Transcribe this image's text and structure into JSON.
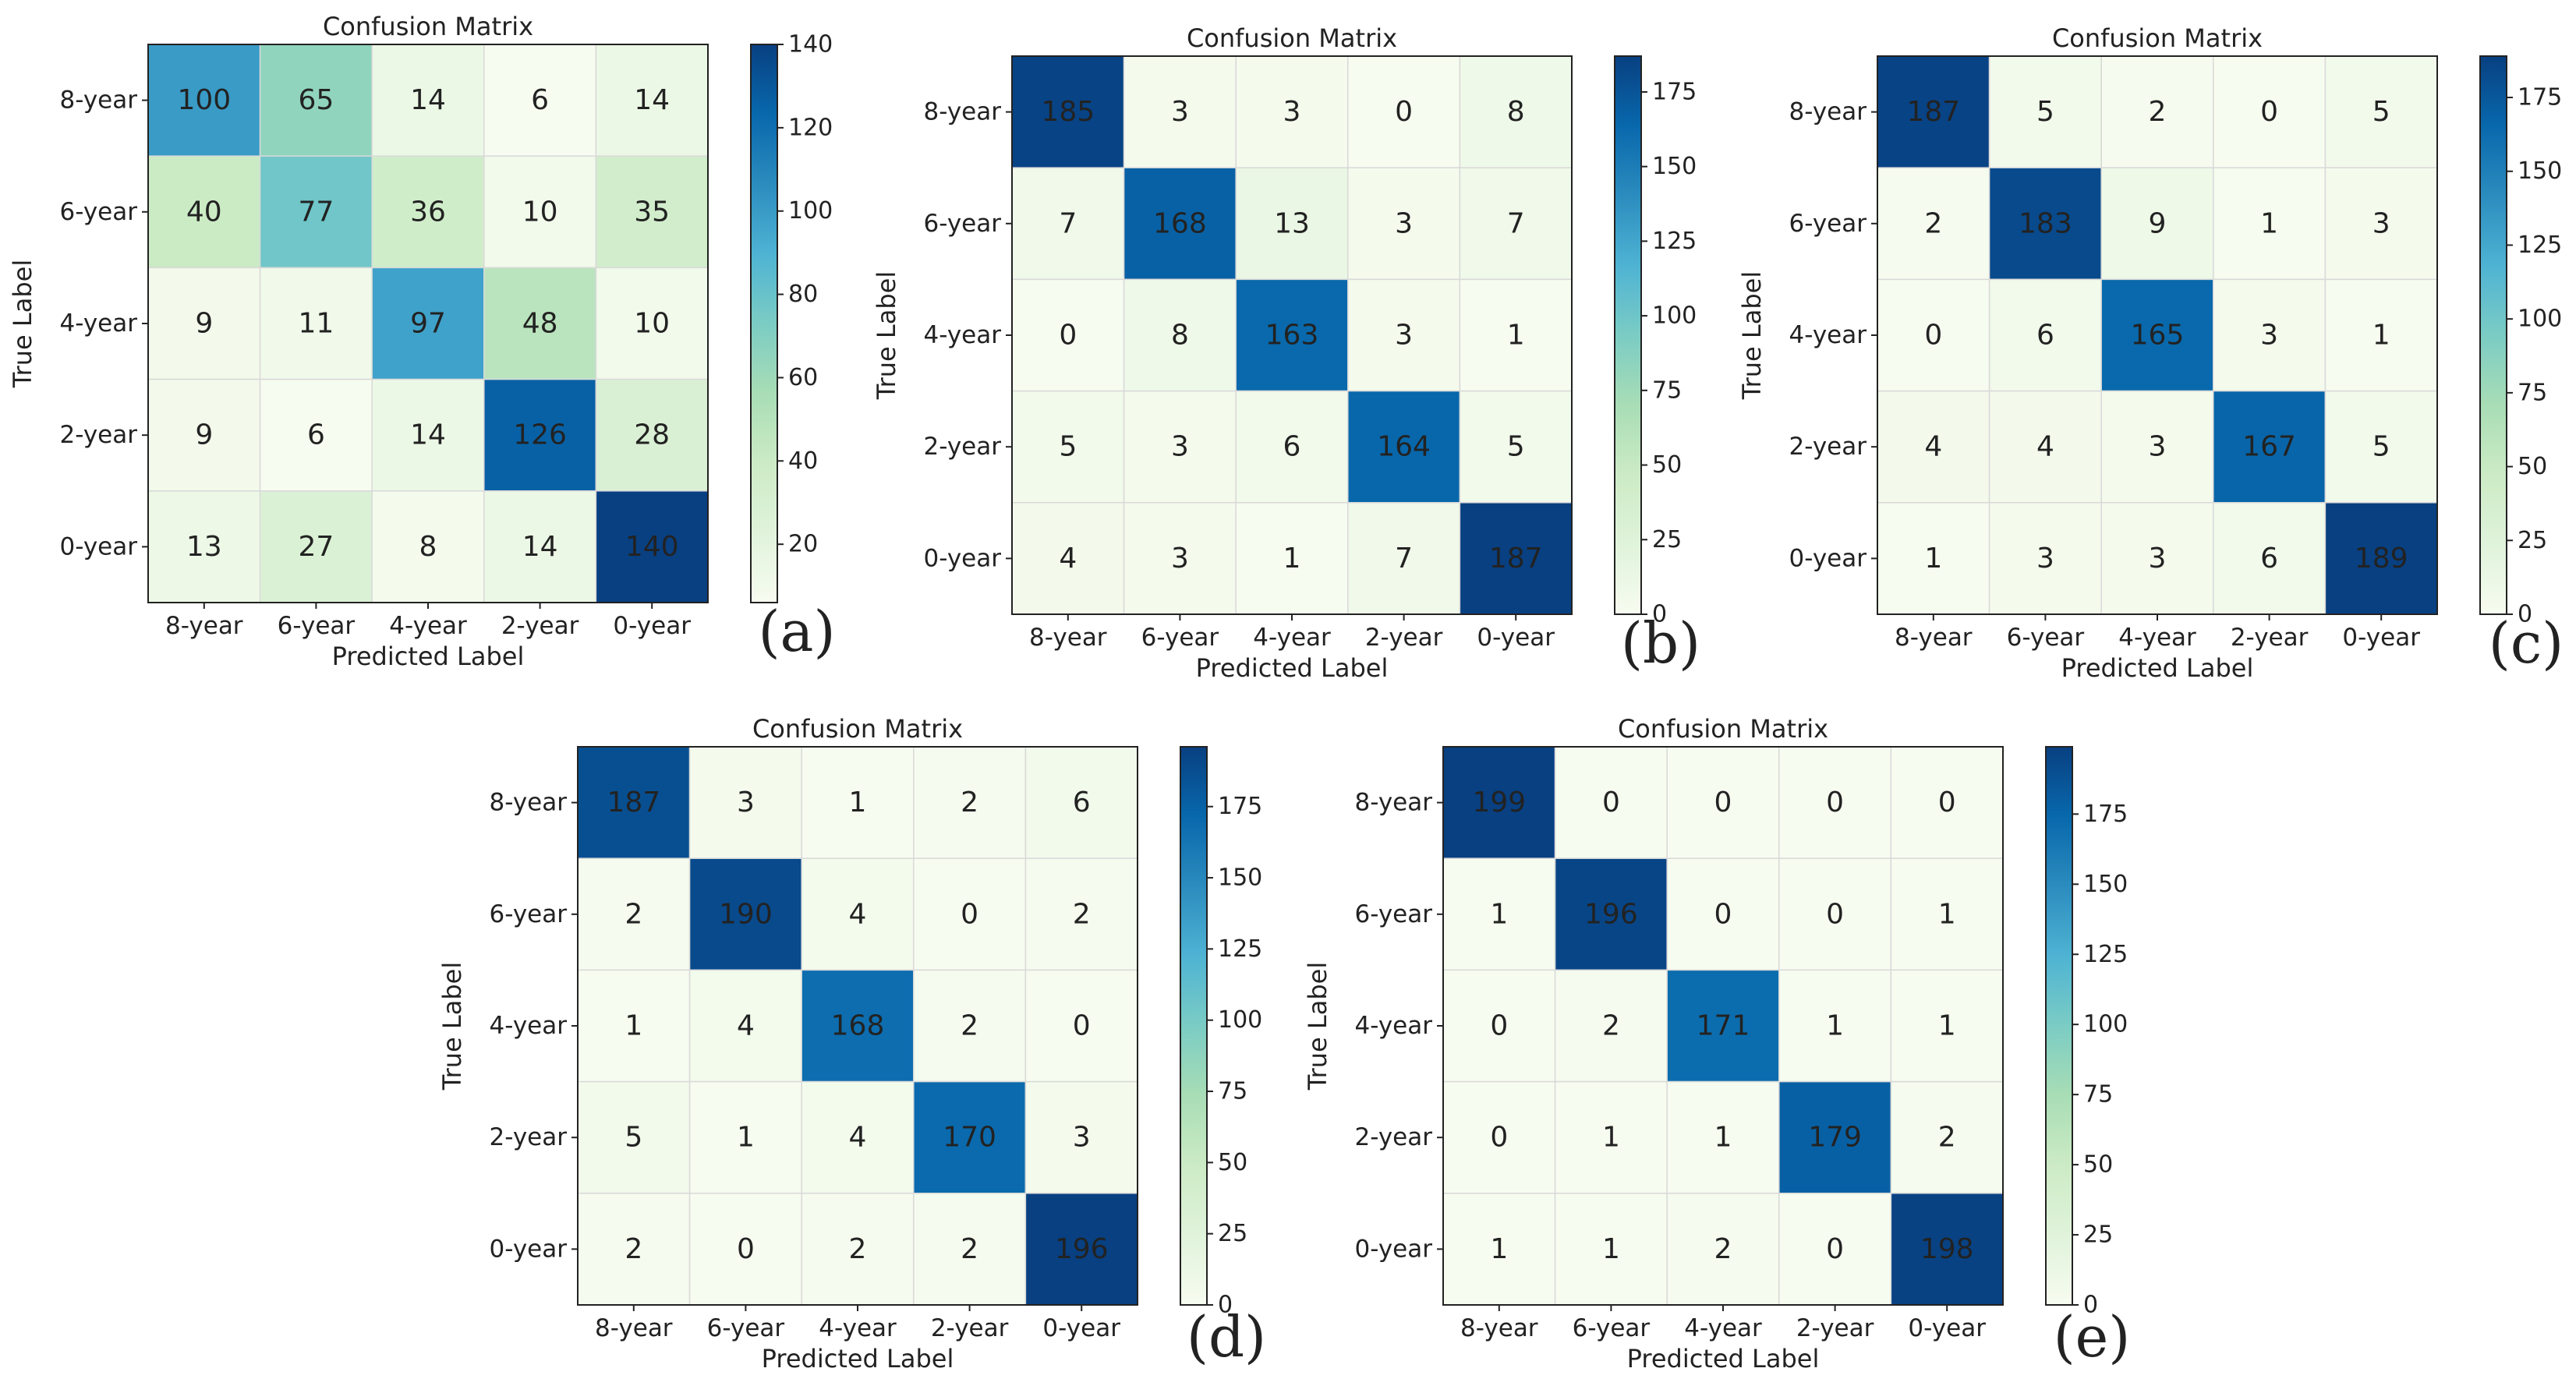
{
  "chart_data": [
    {
      "type": "heatmap",
      "panel_label": "(a)",
      "title": "Confusion Matrix",
      "xlabel": "Predicted Label",
      "ylabel": "True Label",
      "x_tick_labels": [
        "8-year",
        "6-year",
        "4-year",
        "2-year",
        "0-year"
      ],
      "y_tick_labels": [
        "8-year",
        "6-year",
        "4-year",
        "2-year",
        "0-year"
      ],
      "matrix": [
        [
          100,
          65,
          14,
          6,
          14
        ],
        [
          40,
          77,
          36,
          10,
          35
        ],
        [
          9,
          11,
          97,
          48,
          10
        ],
        [
          9,
          6,
          14,
          126,
          28
        ],
        [
          13,
          27,
          8,
          14,
          140
        ]
      ],
      "colorbar_range": [
        6,
        140
      ],
      "colorbar_ticks": [
        20,
        40,
        60,
        80,
        100,
        120,
        140
      ],
      "colormap": "GnBu"
    },
    {
      "type": "heatmap",
      "panel_label": "(b)",
      "title": "Confusion Matrix",
      "xlabel": "Predicted Label",
      "ylabel": "True Label",
      "x_tick_labels": [
        "8-year",
        "6-year",
        "4-year",
        "2-year",
        "0-year"
      ],
      "y_tick_labels": [
        "8-year",
        "6-year",
        "4-year",
        "2-year",
        "0-year"
      ],
      "matrix": [
        [
          185,
          3,
          3,
          0,
          8
        ],
        [
          7,
          168,
          13,
          3,
          7
        ],
        [
          0,
          8,
          163,
          3,
          1
        ],
        [
          5,
          3,
          6,
          164,
          5
        ],
        [
          4,
          3,
          1,
          7,
          187
        ]
      ],
      "colorbar_range": [
        0,
        187
      ],
      "colorbar_ticks": [
        0,
        25,
        50,
        75,
        100,
        125,
        150,
        175
      ],
      "colormap": "GnBu"
    },
    {
      "type": "heatmap",
      "panel_label": "(c)",
      "title": "Confusion Matrix",
      "xlabel": "Predicted Label",
      "ylabel": "True Label",
      "x_tick_labels": [
        "8-year",
        "6-year",
        "4-year",
        "2-year",
        "0-year"
      ],
      "y_tick_labels": [
        "8-year",
        "6-year",
        "4-year",
        "2-year",
        "0-year"
      ],
      "matrix": [
        [
          187,
          5,
          2,
          0,
          5
        ],
        [
          2,
          183,
          9,
          1,
          3
        ],
        [
          0,
          6,
          165,
          3,
          1
        ],
        [
          4,
          4,
          3,
          167,
          5
        ],
        [
          1,
          3,
          3,
          6,
          189
        ]
      ],
      "colorbar_range": [
        0,
        189
      ],
      "colorbar_ticks": [
        0,
        25,
        50,
        75,
        100,
        125,
        150,
        175
      ],
      "colormap": "GnBu"
    },
    {
      "type": "heatmap",
      "panel_label": "(d)",
      "title": "Confusion Matrix",
      "xlabel": "Predicted Label",
      "ylabel": "True Label",
      "x_tick_labels": [
        "8-year",
        "6-year",
        "4-year",
        "2-year",
        "0-year"
      ],
      "y_tick_labels": [
        "8-year",
        "6-year",
        "4-year",
        "2-year",
        "0-year"
      ],
      "matrix": [
        [
          187,
          3,
          1,
          2,
          6
        ],
        [
          2,
          190,
          4,
          0,
          2
        ],
        [
          1,
          4,
          168,
          2,
          0
        ],
        [
          5,
          1,
          4,
          170,
          3
        ],
        [
          2,
          0,
          2,
          2,
          196
        ]
      ],
      "colorbar_range": [
        0,
        196
      ],
      "colorbar_ticks": [
        0,
        25,
        50,
        75,
        100,
        125,
        150,
        175
      ],
      "colormap": "GnBu"
    },
    {
      "type": "heatmap",
      "panel_label": "(e)",
      "title": "Confusion Matrix",
      "xlabel": "Predicted Label",
      "ylabel": "True Label",
      "x_tick_labels": [
        "8-year",
        "6-year",
        "4-year",
        "2-year",
        "0-year"
      ],
      "y_tick_labels": [
        "8-year",
        "6-year",
        "4-year",
        "2-year",
        "0-year"
      ],
      "matrix": [
        [
          199,
          0,
          0,
          0,
          0
        ],
        [
          1,
          196,
          0,
          0,
          1
        ],
        [
          0,
          2,
          171,
          1,
          1
        ],
        [
          0,
          1,
          1,
          179,
          2
        ],
        [
          1,
          1,
          2,
          0,
          198
        ]
      ],
      "colorbar_range": [
        0,
        199
      ],
      "colorbar_ticks": [
        0,
        25,
        50,
        75,
        100,
        125,
        150,
        175
      ],
      "colormap": "GnBu"
    }
  ]
}
